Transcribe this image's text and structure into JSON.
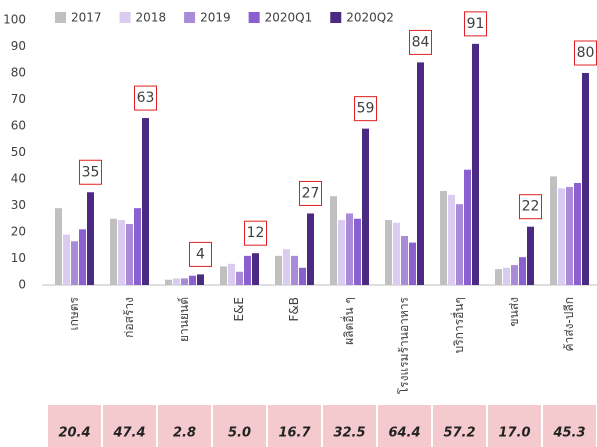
{
  "chart_data": {
    "type": "bar",
    "categories": [
      "เกษตร",
      "ก่อสร้าง",
      "ยานยนต์",
      "E&E",
      "F&B",
      "ผลิตอื่น ๆ",
      "โรงแรมร้านอาหาร",
      "บริการอื่นๆ",
      "ขนส่ง",
      "ค้าส่ง-ปลีก"
    ],
    "series": [
      {
        "name": "2017",
        "color": "#c0c0c0",
        "values": [
          29,
          25,
          2,
          7,
          11,
          33.5,
          24.5,
          35.5,
          6,
          41
        ]
      },
      {
        "name": "2018",
        "color": "#d9ccf0",
        "values": [
          19,
          24.5,
          2.5,
          8,
          13.5,
          24.5,
          23.5,
          34,
          6.5,
          36.5
        ]
      },
      {
        "name": "2019",
        "color": "#a98bd8",
        "values": [
          16.5,
          23,
          2.5,
          5,
          11,
          27,
          18.5,
          30.5,
          7.5,
          37
        ]
      },
      {
        "name": "2020Q1",
        "color": "#8a5fcf",
        "values": [
          21,
          29,
          3.5,
          11,
          6.5,
          25,
          16,
          43.5,
          10.5,
          38.5
        ]
      },
      {
        "name": "2020Q2",
        "color": "#4b2a82",
        "values": [
          35,
          63,
          4,
          12,
          27,
          59,
          84,
          91,
          22,
          80
        ]
      }
    ],
    "ylim": [
      0,
      100
    ],
    "yticks": [
      0,
      10,
      20,
      30,
      40,
      50,
      60,
      70,
      80,
      90,
      100
    ],
    "annotated_series": 4,
    "bottom_row": [
      "20.4",
      "47.4",
      "2.8",
      "5.0",
      "16.7",
      "32.5",
      "64.4",
      "57.2",
      "17.0",
      "45.3"
    ]
  }
}
